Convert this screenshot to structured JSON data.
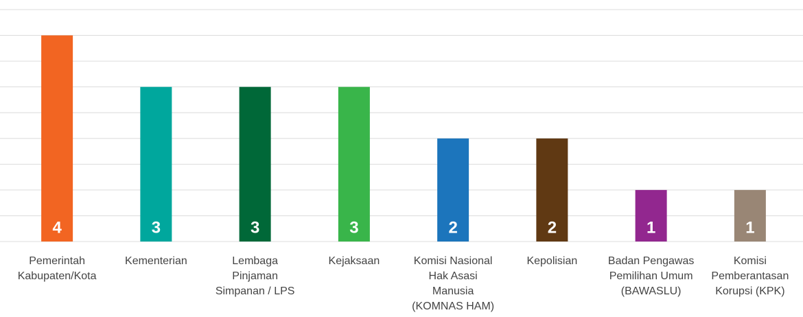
{
  "chart_data": {
    "type": "bar",
    "categories": [
      "Pemerintah Kabupaten/Kota",
      "Kementerian",
      "Lembaga Pinjaman Simpanan / LPS",
      "Kejaksaan",
      "Komisi Nasional Hak Asasi Manusia (KOMNAS HAM)",
      "Kepolisian",
      "Badan Pengawas Pemilihan Umum (BAWASLU)",
      "Komisi Pemberantasan Korupsi (KPK)"
    ],
    "values": [
      4,
      3,
      3,
      3,
      2,
      2,
      1,
      1
    ],
    "colors": [
      "#f26522",
      "#00a79d",
      "#006838",
      "#39b54a",
      "#1c75bc",
      "#603913",
      "#92278f",
      "#998675"
    ],
    "ylim": [
      0,
      4.5
    ],
    "yticks": [
      0,
      0.5,
      1,
      1.5,
      2,
      2.5,
      3,
      3.5,
      4,
      4.5
    ],
    "grid": true
  }
}
